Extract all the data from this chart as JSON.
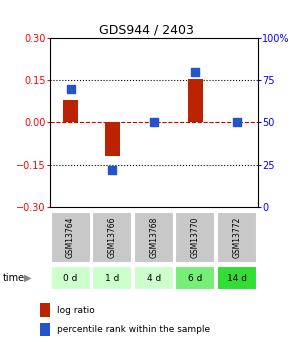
{
  "title": "GDS944 / 2403",
  "samples": [
    "GSM13764",
    "GSM13766",
    "GSM13768",
    "GSM13770",
    "GSM13772"
  ],
  "time_labels": [
    "0 d",
    "1 d",
    "4 d",
    "6 d",
    "14 d"
  ],
  "log_ratio": [
    0.08,
    -0.12,
    0.0,
    0.155,
    0.0
  ],
  "percentile_rank": [
    70,
    22,
    50,
    80,
    50
  ],
  "ylim_left": [
    -0.3,
    0.3
  ],
  "ylim_right": [
    0,
    100
  ],
  "yticks_left": [
    -0.3,
    -0.15,
    0,
    0.15,
    0.3
  ],
  "yticks_right": [
    0,
    25,
    50,
    75,
    100
  ],
  "hlines_dotted": [
    -0.15,
    0.15
  ],
  "bar_color": "#bb2200",
  "dot_color": "#2255cc",
  "bar_width": 0.35,
  "dot_size": 40,
  "sample_bg_color": "#c8c8c8",
  "time_bg_colors": [
    "#ccffcc",
    "#ccffcc",
    "#ccffcc",
    "#77ee77",
    "#33dd33"
  ],
  "legend_bar_color": "#bb2200",
  "legend_dot_color": "#2255cc",
  "legend_label_bar": "log ratio",
  "legend_label_dot": "percentile rank within the sample",
  "time_label": "time",
  "zero_line_color": "#cc0000",
  "title_fontsize": 9,
  "tick_fontsize": 7,
  "sample_fontsize": 5.5,
  "time_fontsize": 6.5,
  "legend_fontsize": 6.5
}
